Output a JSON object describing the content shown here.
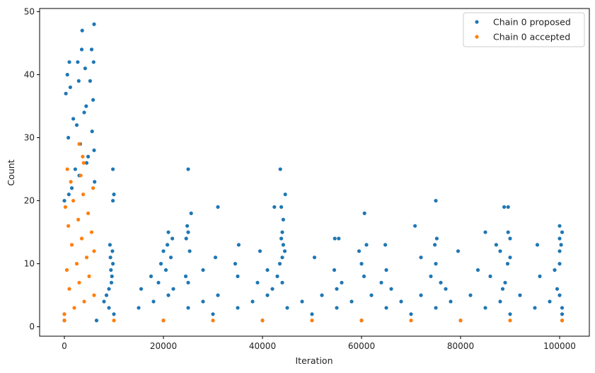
{
  "chart_data": {
    "type": "scatter",
    "title": "",
    "xlabel": "Iteration",
    "ylabel": "Count",
    "xlim": [
      -5000,
      106000
    ],
    "ylim": [
      -1.5,
      50.5
    ],
    "xticks": [
      0,
      20000,
      40000,
      60000,
      80000,
      100000
    ],
    "xtick_labels": [
      "0",
      "20000",
      "40000",
      "60000",
      "80000",
      "100000"
    ],
    "yticks": [
      0,
      10,
      20,
      30,
      40,
      50
    ],
    "ytick_labels": [
      "0",
      "10",
      "20",
      "30",
      "40",
      "50"
    ],
    "grid": false,
    "legend_position": "top-right",
    "series": [
      {
        "name": "Chain 0 proposed",
        "color": "#1f77b4",
        "marker": "circle",
        "points": [
          [
            0,
            1
          ],
          [
            6500,
            1
          ],
          [
            20000,
            1
          ],
          [
            40000,
            1
          ],
          [
            60000,
            1
          ],
          [
            80000,
            1
          ],
          [
            100500,
            1
          ],
          [
            0,
            2
          ],
          [
            10000,
            2
          ],
          [
            30000,
            2
          ],
          [
            50000,
            2
          ],
          [
            70000,
            2
          ],
          [
            90000,
            2
          ],
          [
            100500,
            2
          ],
          [
            9000,
            3
          ],
          [
            15000,
            3
          ],
          [
            25000,
            3
          ],
          [
            35000,
            3
          ],
          [
            45000,
            3
          ],
          [
            55000,
            3
          ],
          [
            65000,
            3
          ],
          [
            75000,
            3
          ],
          [
            85000,
            3
          ],
          [
            95000,
            3
          ],
          [
            100500,
            3
          ],
          [
            8000,
            4
          ],
          [
            18000,
            4
          ],
          [
            28000,
            4
          ],
          [
            38000,
            4
          ],
          [
            48000,
            4
          ],
          [
            58000,
            4
          ],
          [
            68000,
            4
          ],
          [
            78000,
            4
          ],
          [
            88000,
            4
          ],
          [
            98000,
            4
          ],
          [
            8500,
            5
          ],
          [
            21000,
            5
          ],
          [
            31000,
            5
          ],
          [
            41000,
            5
          ],
          [
            52000,
            5
          ],
          [
            62000,
            5
          ],
          [
            72000,
            5
          ],
          [
            82000,
            5
          ],
          [
            92000,
            5
          ],
          [
            100000,
            5
          ],
          [
            9000,
            6
          ],
          [
            15500,
            6
          ],
          [
            22000,
            6
          ],
          [
            42000,
            6
          ],
          [
            55000,
            6
          ],
          [
            66000,
            6
          ],
          [
            77000,
            6
          ],
          [
            88500,
            6
          ],
          [
            99500,
            6
          ],
          [
            9500,
            7
          ],
          [
            19000,
            7
          ],
          [
            25000,
            7
          ],
          [
            39000,
            7
          ],
          [
            44000,
            7
          ],
          [
            56000,
            7
          ],
          [
            64000,
            7
          ],
          [
            76000,
            7
          ],
          [
            89000,
            7
          ],
          [
            9600,
            8
          ],
          [
            17500,
            8
          ],
          [
            24500,
            8
          ],
          [
            35000,
            8
          ],
          [
            43000,
            8
          ],
          [
            60500,
            8
          ],
          [
            74000,
            8
          ],
          [
            86000,
            8
          ],
          [
            96000,
            8
          ],
          [
            9400,
            9
          ],
          [
            20500,
            9
          ],
          [
            28000,
            9
          ],
          [
            41000,
            9
          ],
          [
            54500,
            9
          ],
          [
            65000,
            9
          ],
          [
            83500,
            9
          ],
          [
            99000,
            9
          ],
          [
            9800,
            10
          ],
          [
            19500,
            10
          ],
          [
            34500,
            10
          ],
          [
            43500,
            10
          ],
          [
            60000,
            10
          ],
          [
            75000,
            10
          ],
          [
            89500,
            10
          ],
          [
            100000,
            10
          ],
          [
            9300,
            11
          ],
          [
            21500,
            11
          ],
          [
            30500,
            11
          ],
          [
            44000,
            11
          ],
          [
            50500,
            11
          ],
          [
            72000,
            11
          ],
          [
            90000,
            11
          ],
          [
            9700,
            12
          ],
          [
            20000,
            12
          ],
          [
            25300,
            12
          ],
          [
            39500,
            12
          ],
          [
            44500,
            12
          ],
          [
            59500,
            12
          ],
          [
            79500,
            12
          ],
          [
            88000,
            12
          ],
          [
            100000,
            12
          ],
          [
            9200,
            13
          ],
          [
            20800,
            13
          ],
          [
            35200,
            13
          ],
          [
            44200,
            13
          ],
          [
            61000,
            13
          ],
          [
            64800,
            13
          ],
          [
            74800,
            13
          ],
          [
            87200,
            13
          ],
          [
            95500,
            13
          ],
          [
            100300,
            13
          ],
          [
            21800,
            14
          ],
          [
            24600,
            14
          ],
          [
            43800,
            14
          ],
          [
            54600,
            14
          ],
          [
            55400,
            14
          ],
          [
            75200,
            14
          ],
          [
            90000,
            14
          ],
          [
            100000,
            14
          ],
          [
            21000,
            15
          ],
          [
            25000,
            15
          ],
          [
            44000,
            15
          ],
          [
            85000,
            15
          ],
          [
            89600,
            15
          ],
          [
            100500,
            15
          ],
          [
            24800,
            16
          ],
          [
            70800,
            16
          ],
          [
            100000,
            16
          ],
          [
            44200,
            17
          ],
          [
            25600,
            18
          ],
          [
            60600,
            18
          ],
          [
            31000,
            19
          ],
          [
            42400,
            19
          ],
          [
            43800,
            19
          ],
          [
            88800,
            19
          ],
          [
            89600,
            19
          ],
          [
            9800,
            20
          ],
          [
            75000,
            20
          ],
          [
            10000,
            21
          ],
          [
            44600,
            21
          ],
          [
            9800,
            25
          ],
          [
            25000,
            25
          ],
          [
            43600,
            25
          ],
          [
            0,
            20
          ],
          [
            1500,
            22
          ],
          [
            3000,
            24
          ],
          [
            4500,
            26
          ],
          [
            6000,
            28
          ],
          [
            800,
            30
          ],
          [
            2500,
            32
          ],
          [
            4000,
            34
          ],
          [
            5800,
            36
          ],
          [
            1200,
            38
          ],
          [
            600,
            40
          ],
          [
            1000,
            42
          ],
          [
            3500,
            44
          ],
          [
            5500,
            44
          ],
          [
            4200,
            41
          ],
          [
            5900,
            42
          ],
          [
            2700,
            42
          ],
          [
            3600,
            47
          ],
          [
            6000,
            48
          ],
          [
            300,
            37
          ],
          [
            1800,
            33
          ],
          [
            3200,
            29
          ],
          [
            4800,
            27
          ],
          [
            5600,
            31
          ],
          [
            2200,
            25
          ],
          [
            6100,
            23
          ],
          [
            900,
            21
          ],
          [
            4400,
            35
          ],
          [
            5200,
            39
          ],
          [
            2900,
            39
          ]
        ]
      },
      {
        "name": "Chain 0 accepted",
        "color": "#ff7f0e",
        "marker": "circle",
        "points": [
          [
            0,
            1
          ],
          [
            10000,
            1
          ],
          [
            20000,
            1
          ],
          [
            30000,
            1
          ],
          [
            40000,
            1
          ],
          [
            50000,
            1
          ],
          [
            60000,
            1
          ],
          [
            70000,
            1
          ],
          [
            80000,
            1
          ],
          [
            90000,
            1
          ],
          [
            100500,
            1
          ],
          [
            0,
            2
          ],
          [
            2000,
            3
          ],
          [
            4000,
            4
          ],
          [
            6000,
            5
          ],
          [
            1000,
            6
          ],
          [
            3000,
            7
          ],
          [
            5000,
            8
          ],
          [
            500,
            9
          ],
          [
            2500,
            10
          ],
          [
            4500,
            11
          ],
          [
            6000,
            12
          ],
          [
            1500,
            13
          ],
          [
            3500,
            14
          ],
          [
            5500,
            15
          ],
          [
            800,
            16
          ],
          [
            2800,
            17
          ],
          [
            4800,
            18
          ],
          [
            200,
            19
          ],
          [
            1800,
            20
          ],
          [
            3800,
            21
          ],
          [
            5800,
            22
          ],
          [
            1300,
            23
          ],
          [
            3300,
            24
          ],
          [
            600,
            25
          ],
          [
            3900,
            26
          ],
          [
            3700,
            27
          ],
          [
            3000,
            29
          ]
        ]
      }
    ]
  }
}
